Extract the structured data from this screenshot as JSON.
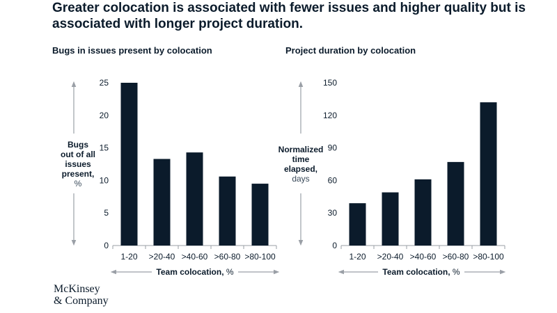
{
  "headline": "Greater colocation is associated with fewer issues and higher quality but is associated with longer project duration.",
  "logo": {
    "line1": "McKinsey",
    "line2": "& Company"
  },
  "colors": {
    "bar": "#0b1b2b",
    "axis": "#9a9fa6",
    "text": "#0b1b2b",
    "ylabel_light": "#3a4a5a"
  },
  "chart_data": [
    {
      "type": "bar",
      "title": "Bugs in issues present by colocation",
      "categories": [
        "1-20",
        ">20-40",
        ">40-60",
        ">60-80",
        ">80-100"
      ],
      "values": [
        25,
        13.3,
        14.3,
        10.6,
        9.5
      ],
      "ylim": [
        0,
        25
      ],
      "yticks": [
        "0",
        "5",
        "10",
        "15",
        "20",
        "25"
      ],
      "ylabel_bold": [
        "Bugs",
        "out of all",
        "issues",
        "present,"
      ],
      "ylabel_unit": "%",
      "xlabel_bold": "Team colocation,",
      "xlabel_unit": " %"
    },
    {
      "type": "bar",
      "title": "Project duration by colocation",
      "categories": [
        "1-20",
        ">20-40",
        ">40-60",
        ">60-80",
        ">80-100"
      ],
      "values": [
        39,
        49,
        61,
        77,
        132
      ],
      "ylim": [
        0,
        150
      ],
      "yticks": [
        "0",
        "30",
        "60",
        "90",
        "120",
        "150"
      ],
      "ylabel_bold": [
        "Normalized",
        "time",
        "elapsed,"
      ],
      "ylabel_unit": "days",
      "xlabel_bold": "Team colocation,",
      "xlabel_unit": " %"
    }
  ]
}
